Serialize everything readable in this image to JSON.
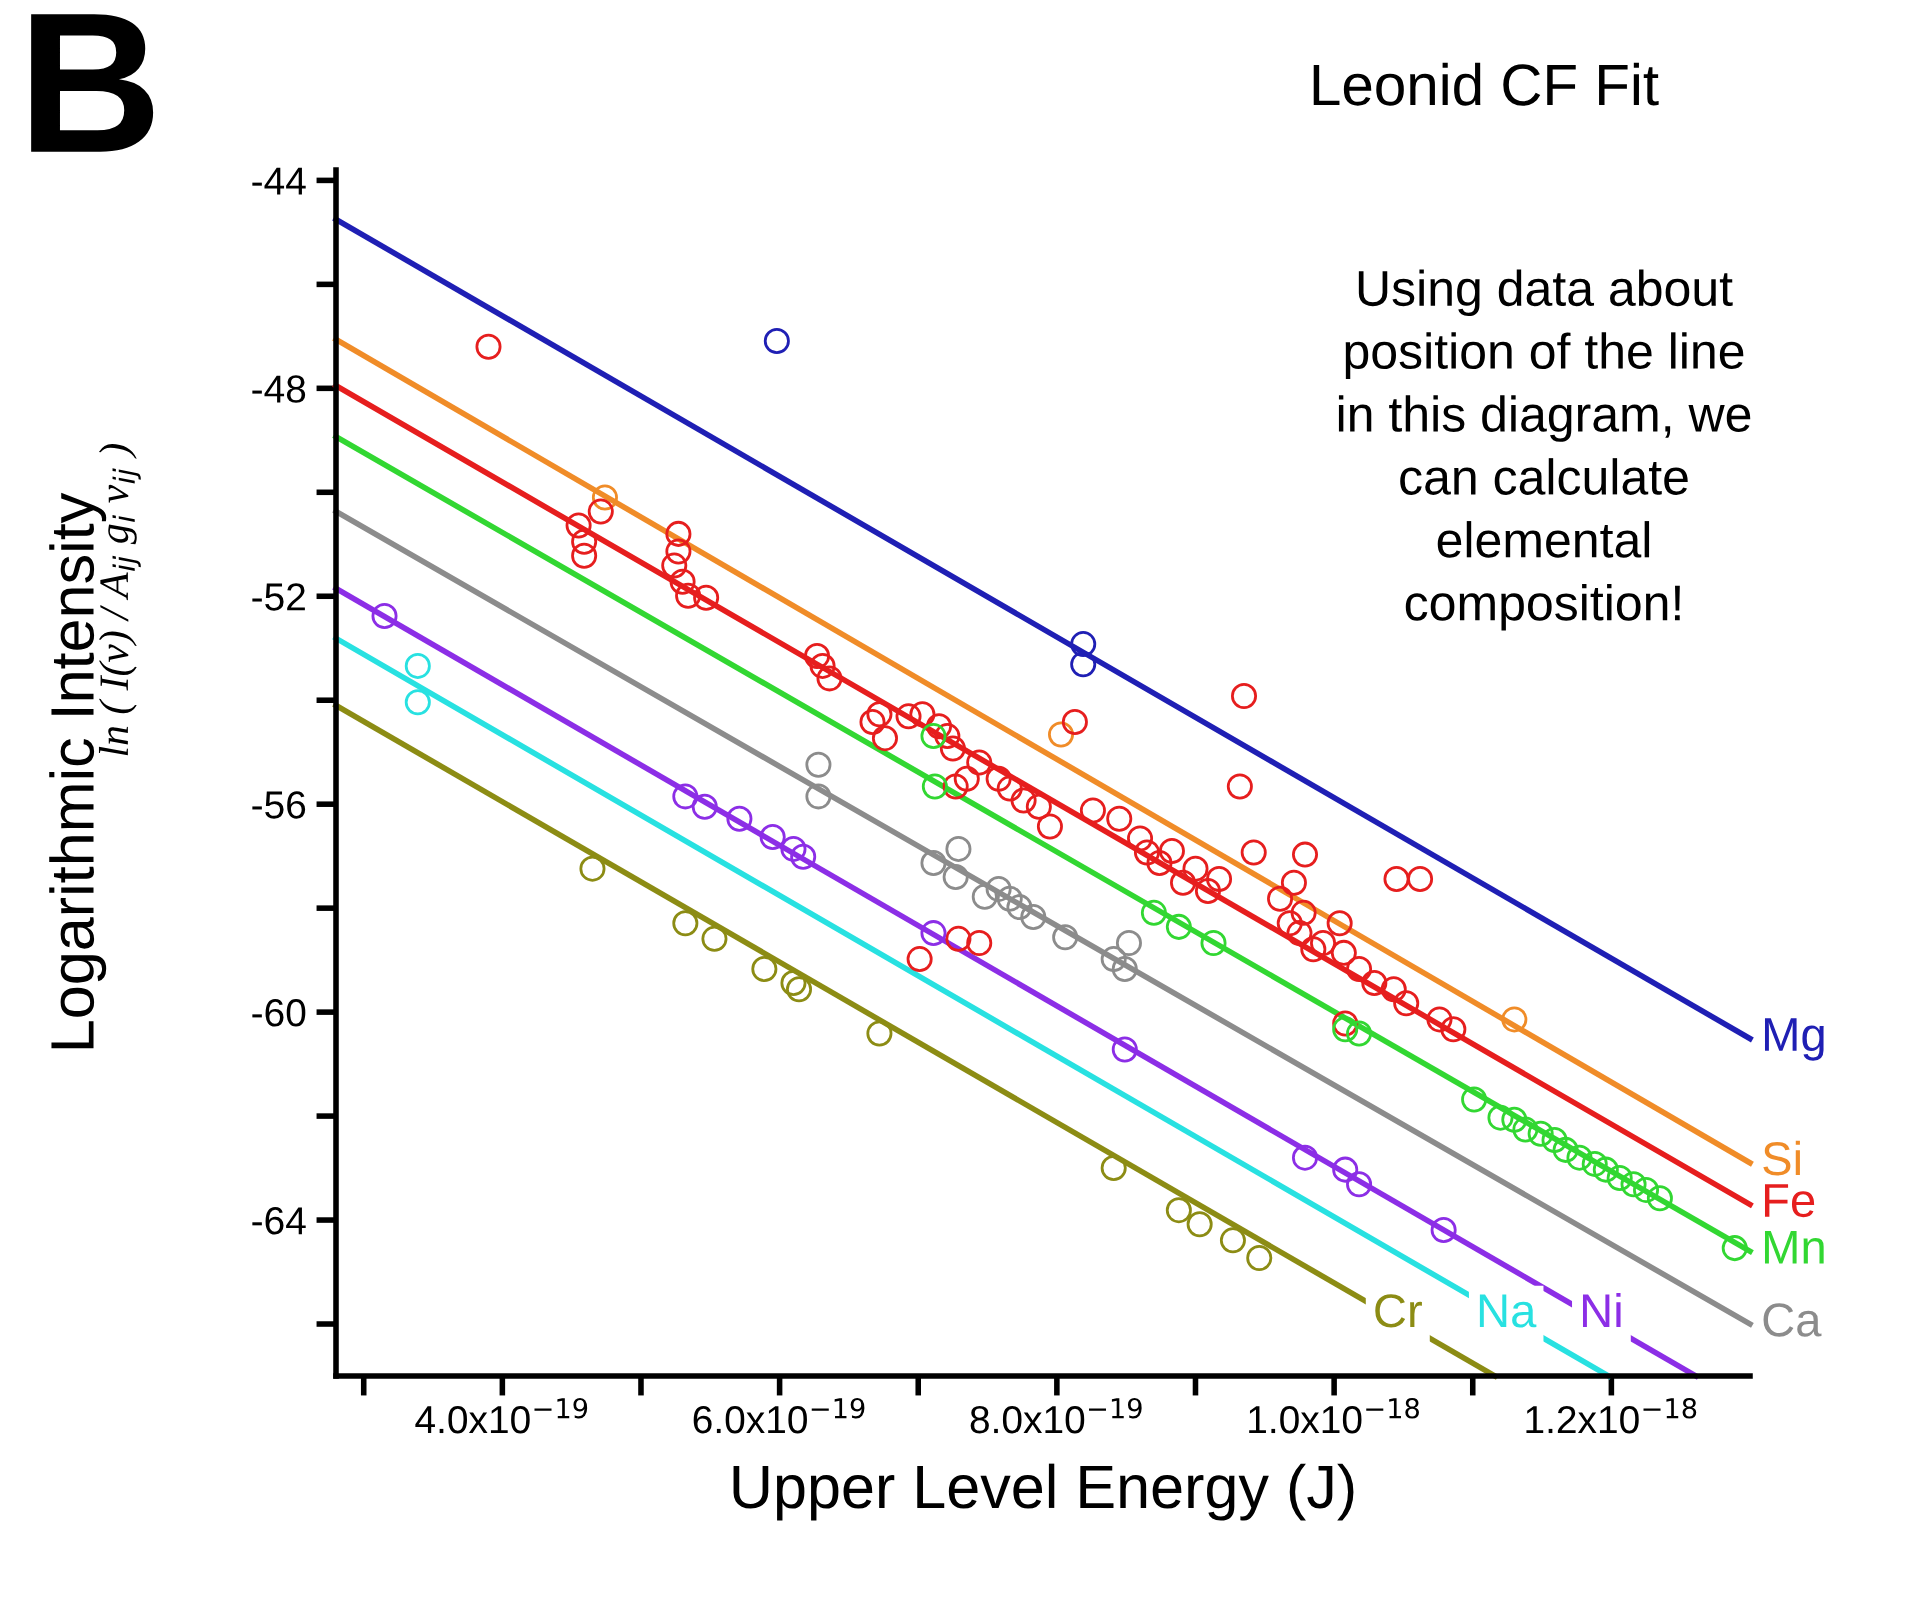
{
  "chart_data": {
    "type": "scatter",
    "title": "Leonid CF Fit",
    "xlabel": "Upper Level Energy (J)",
    "ylabel": "Logarithmic Intensity",
    "annotations": [
      "B",
      "ln ( I(ν) / A$_{ij}$ g$_{i}$ ν$_{ij}$ )",
      "Using data about\nposition of the line\nin this diagram, we\ncan calculate\nelemental\ncomposition!"
    ],
    "xlim": [
      2.8e-19,
      1.3e-18
    ],
    "ylim": [
      -67,
      -43.8
    ],
    "xticks": [
      {
        "value": 3e-19,
        "label": null
      },
      {
        "value": 4e-19,
        "label": "4.0x10$^{−19}$"
      },
      {
        "value": 5e-19,
        "label": null
      },
      {
        "value": 6e-19,
        "label": "6.0x10$^{−19}$"
      },
      {
        "value": 7e-19,
        "label": null
      },
      {
        "value": 8e-19,
        "label": "8.0x10$^{−19}$"
      },
      {
        "value": 9e-19,
        "label": null
      },
      {
        "value": 1e-18,
        "label": "1.0x10$^{−18}$"
      },
      {
        "value": 1.1e-18,
        "label": null
      },
      {
        "value": 1.2e-18,
        "label": "1.2x10$^{−18}$"
      }
    ],
    "yticks": [
      -44,
      {
        "value": -46,
        "label": null
      },
      -48,
      {
        "value": -50,
        "label": null
      },
      -52,
      {
        "value": -54,
        "label": null
      },
      -56,
      {
        "value": -58,
        "label": null
      },
      -60,
      {
        "value": -62,
        "label": null
      },
      -64,
      {
        "value": -66,
        "label": null
      }
    ],
    "grid": false,
    "legend": false,
    "marker": "circle",
    "series": [
      {
        "type": "line",
        "marker": "none",
        "name": "Mg",
        "color": "#1f1fb4",
        "x": [
          2.8e-19,
          1.3e-18
        ],
        "values": [
          -44.75,
          -60.51
        ]
      },
      {
        "type": "line",
        "marker": "none",
        "name": "Si",
        "color": "#f08c28",
        "x": [
          2.8e-19,
          1.3e-18
        ],
        "values": [
          -47.06,
          -62.9
        ]
      },
      {
        "type": "line",
        "marker": "none",
        "name": "Fe",
        "color": "#e61e1e",
        "x": [
          2.8e-19,
          1.3e-18
        ],
        "values": [
          -47.95,
          -63.7
        ]
      },
      {
        "type": "line",
        "marker": "none",
        "name": "Mn",
        "color": "#32d732",
        "x": [
          2.8e-19,
          1.3e-18
        ],
        "values": [
          -48.93,
          -64.6
        ]
      },
      {
        "type": "line",
        "marker": "none",
        "name": "Ca",
        "color": "#8c8c8c",
        "x": [
          2.8e-19,
          1.3e-18
        ],
        "values": [
          -50.37,
          -66.0
        ]
      },
      {
        "type": "line",
        "marker": "none",
        "name": "Ni",
        "color": "#8c2ee6",
        "x": [
          2.8e-19,
          1.261e-18
        ],
        "values": [
          -51.85,
          -67.0
        ]
      },
      {
        "type": "line",
        "marker": "none",
        "name": "Na",
        "color": "#28e1e1",
        "x": [
          2.8e-19,
          1.198e-18
        ],
        "values": [
          -52.81,
          -67.0
        ]
      },
      {
        "type": "line",
        "marker": "none",
        "name": "Cr",
        "color": "#8c8c14",
        "x": [
          2.8e-19,
          1.116e-18
        ],
        "values": [
          -54.1,
          -67.0
        ]
      },
      {
        "color": "#1f1fb4",
        "x": [
          5.98e-19,
          8.19e-19,
          8.19e-19
        ],
        "values": [
          -47.09,
          -52.92,
          -53.31
        ]
      },
      {
        "color": "#f08c28",
        "x": [
          4.74e-19,
          8.03e-19,
          1.13e-18
        ],
        "values": [
          -50.1,
          -54.66,
          -60.14
        ]
      },
      {
        "color": "#e61e1e",
        "x": [
          3.9e-19,
          4.55e-19,
          4.59e-19,
          4.59e-19,
          4.71e-19,
          5.27e-19,
          5.27e-19,
          5.24e-19,
          5.3e-19,
          5.34e-19,
          5.47e-19,
          6.27e-19,
          6.31e-19,
          6.36e-19,
          6.67e-19,
          6.72e-19,
          6.76e-19,
          6.93e-19,
          7.03e-19,
          7.15e-19,
          7.21e-19,
          7.25e-19,
          7.27e-19,
          7.35e-19,
          7.44e-19,
          7.58e-19,
          7.66e-19,
          7.76e-19,
          7.87e-19,
          7.95e-19,
          8.13e-19,
          8.26e-19,
          8.45e-19,
          8.6e-19,
          8.65e-19,
          8.74e-19,
          8.83e-19,
          8.91e-19,
          9e-19,
          9.09e-19,
          9.17e-19,
          9.35e-19,
          9.32e-19,
          9.42e-19,
          9.61e-19,
          9.71e-19,
          9.78e-19,
          9.79e-19,
          9.68e-19,
          9.75e-19,
          9.85e-19,
          9.92e-19,
          1.004e-18,
          1.007e-18,
          1.008e-18,
          1.018e-18,
          1.029e-18,
          1.043e-18,
          1.052e-18,
          1.045e-18,
          1.062e-18,
          1.076e-18,
          1.086e-18,
          7.01e-19,
          7.29e-19,
          7.44e-19
        ],
        "values": [
          -47.2,
          -50.64,
          -50.95,
          -51.22,
          -50.37,
          -50.8,
          -51.14,
          -51.41,
          -51.72,
          -51.99,
          -52.03,
          -53.15,
          -53.34,
          -53.58,
          -54.42,
          -54.27,
          -54.73,
          -54.31,
          -54.27,
          -54.5,
          -54.69,
          -54.93,
          -55.66,
          -55.51,
          -55.2,
          -55.51,
          -55.7,
          -55.93,
          -56.05,
          -56.43,
          -54.42,
          -56.12,
          -56.28,
          -56.66,
          -56.93,
          -57.13,
          -56.9,
          -57.51,
          -57.24,
          -57.67,
          -57.44,
          -53.92,
          -55.66,
          -56.93,
          -57.82,
          -57.51,
          -58.09,
          -56.97,
          -58.29,
          -58.48,
          -58.79,
          -58.67,
          -58.29,
          -58.86,
          -60.22,
          -59.17,
          -59.44,
          -59.56,
          -59.83,
          -57.44,
          -57.44,
          -60.14,
          -60.33,
          -58.98,
          -58.59,
          -58.67
        ]
      },
      {
        "color": "#32d732",
        "x": [
          7.11e-19,
          7.12e-19,
          8.7e-19,
          8.88e-19,
          9.13e-19,
          1.008e-18,
          1.018e-18,
          1.101e-18,
          1.12e-18,
          1.13e-18,
          1.138e-18,
          1.149e-18,
          1.159e-18,
          1.167e-18,
          1.177e-18,
          1.188e-18,
          1.196e-18,
          1.206e-18,
          1.216e-18,
          1.225e-18,
          1.235e-18,
          1.289e-18
        ],
        "values": [
          -54.69,
          -55.66,
          -58.09,
          -58.36,
          -58.67,
          -60.33,
          -60.41,
          -61.68,
          -62.03,
          -62.07,
          -62.26,
          -62.34,
          -62.46,
          -62.65,
          -62.8,
          -62.92,
          -63.03,
          -63.19,
          -63.31,
          -63.42,
          -63.58,
          -64.54
        ]
      },
      {
        "color": "#8c8c8c",
        "x": [
          6.28e-19,
          6.28e-19,
          7.11e-19,
          7.29e-19,
          7.27e-19,
          7.48e-19,
          7.58e-19,
          7.66e-19,
          7.73e-19,
          7.83e-19,
          8.06e-19,
          8.41e-19,
          8.49e-19,
          8.52e-19
        ],
        "values": [
          -55.24,
          -55.85,
          -57.13,
          -56.86,
          -57.4,
          -57.78,
          -57.63,
          -57.82,
          -57.98,
          -58.17,
          -58.56,
          -58.98,
          -59.17,
          -58.67
        ]
      },
      {
        "color": "#8c2ee6",
        "x": [
          3.15e-19,
          5.32e-19,
          5.46e-19,
          5.71e-19,
          5.95e-19,
          6.1e-19,
          6.17e-19,
          7.11e-19,
          8.49e-19,
          9.79e-19,
          1.008e-18,
          1.018e-18,
          1.079e-18
        ],
        "values": [
          -52.38,
          -55.85,
          -56.05,
          -56.28,
          -56.63,
          -56.86,
          -57.01,
          -58.48,
          -60.72,
          -62.8,
          -63.03,
          -63.31,
          -64.19
        ]
      },
      {
        "color": "#28e1e1",
        "x": [
          3.39e-19,
          3.39e-19
        ],
        "values": [
          -53.34,
          -54.04
        ]
      },
      {
        "color": "#8c8c14",
        "x": [
          4.65e-19,
          5.32e-19,
          5.53e-19,
          5.89e-19,
          6.1e-19,
          6.14e-19,
          6.72e-19,
          8.41e-19,
          8.88e-19,
          9.03e-19,
          9.27e-19,
          9.46e-19
        ],
        "values": [
          -57.24,
          -58.29,
          -58.59,
          -59.17,
          -59.44,
          -59.56,
          -60.41,
          -63.0,
          -63.81,
          -64.08,
          -64.39,
          -64.73
        ]
      }
    ]
  }
}
